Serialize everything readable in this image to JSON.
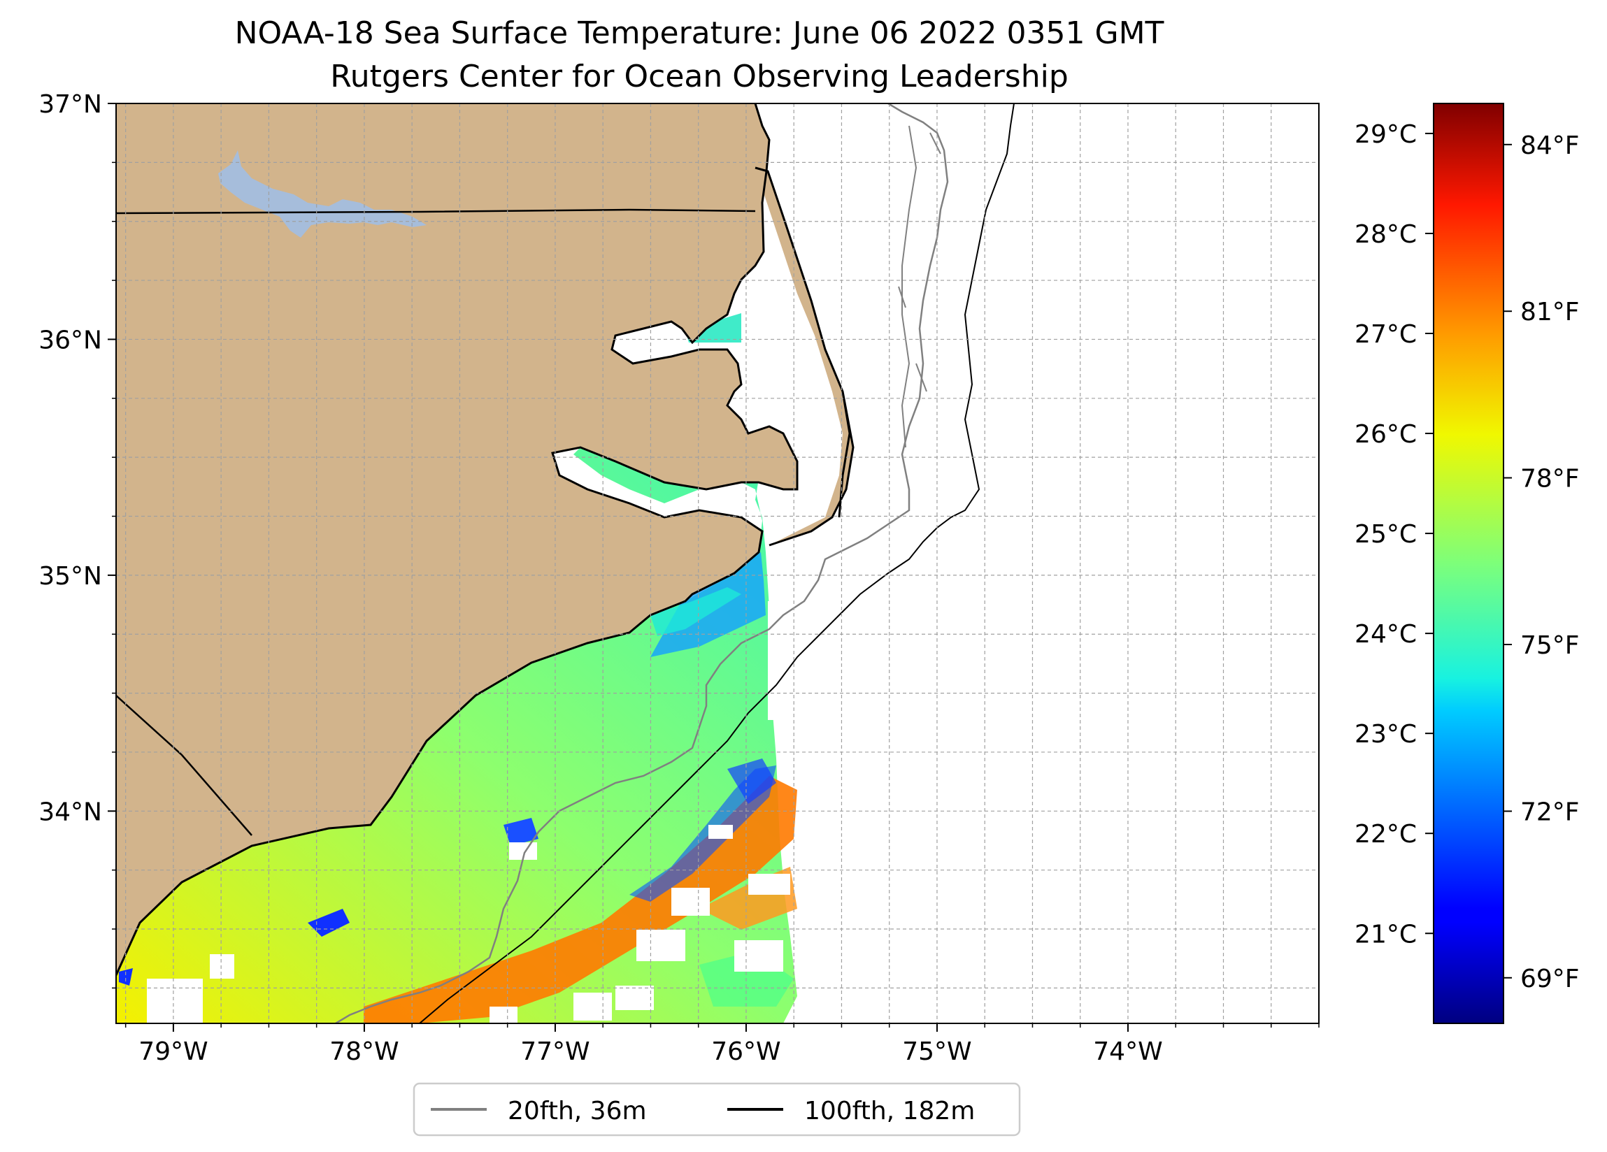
{
  "title": {
    "line1": "NOAA-18 Sea Surface Temperature: June 06 2022 0351 GMT",
    "line2": "Rutgers Center for Ocean Observing Leadership"
  },
  "map": {
    "lon_range": [
      -79.3,
      -73.0
    ],
    "lat_range": [
      33.1,
      37.0
    ],
    "lon_ticks": [
      {
        "value": -79,
        "label": "79°W"
      },
      {
        "value": -78,
        "label": "78°W"
      },
      {
        "value": -77,
        "label": "77°W"
      },
      {
        "value": -76,
        "label": "76°W"
      },
      {
        "value": -75,
        "label": "75°W"
      },
      {
        "value": -74,
        "label": "74°W"
      }
    ],
    "lat_ticks": [
      {
        "value": 37,
        "label": "37°N"
      },
      {
        "value": 36,
        "label": "36°N"
      },
      {
        "value": 35,
        "label": "35°N"
      },
      {
        "value": 34,
        "label": "34°N"
      }
    ],
    "grid": true,
    "land_color": "#d2b48c",
    "lake_color": "#a6bddb"
  },
  "colorbar": {
    "colormap": "jet",
    "range_c": [
      20.1,
      29.3
    ],
    "celsius_ticks": [
      {
        "value": 29,
        "label": "29°C"
      },
      {
        "value": 28,
        "label": "28°C"
      },
      {
        "value": 27,
        "label": "27°C"
      },
      {
        "value": 26,
        "label": "26°C"
      },
      {
        "value": 25,
        "label": "25°C"
      },
      {
        "value": 24,
        "label": "24°C"
      },
      {
        "value": 23,
        "label": "23°C"
      },
      {
        "value": 22,
        "label": "22°C"
      },
      {
        "value": 21,
        "label": "21°C"
      }
    ],
    "fahrenheit_ticks": [
      {
        "value_c": 28.889,
        "label": "84°F"
      },
      {
        "value_c": 27.222,
        "label": "81°F"
      },
      {
        "value_c": 25.556,
        "label": "78°F"
      },
      {
        "value_c": 23.889,
        "label": "75°F"
      },
      {
        "value_c": 22.222,
        "label": "72°F"
      },
      {
        "value_c": 20.556,
        "label": "69°F"
      }
    ]
  },
  "legend": {
    "placement": "bottom-center",
    "items": [
      {
        "label": "20fth, 36m",
        "color": "#808080"
      },
      {
        "label": "100fth, 182m",
        "color": "#000000"
      }
    ]
  }
}
